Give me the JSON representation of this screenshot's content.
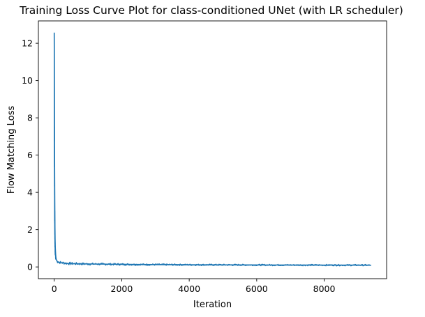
{
  "chart_data": {
    "type": "line",
    "title": "Training Loss Curve Plot for class-conditioned UNet (with LR scheduler)",
    "xlabel": "Iteration",
    "ylabel": "Flow Matching Loss",
    "xlim": [
      -470,
      9850
    ],
    "ylim": [
      -0.63,
      13.2
    ],
    "x_ticks": [
      0,
      2000,
      4000,
      6000,
      8000
    ],
    "x_tick_labels": [
      "0",
      "2000",
      "4000",
      "6000",
      "8000"
    ],
    "y_ticks": [
      0,
      2,
      4,
      6,
      8,
      10,
      12
    ],
    "y_tick_labels": [
      "0",
      "2",
      "4",
      "6",
      "8",
      "10",
      "12"
    ],
    "grid": false,
    "legend": null,
    "series": [
      {
        "color": "#1f77b4",
        "x": [
          0,
          2,
          5,
          8,
          12,
          16,
          20,
          25,
          30,
          40,
          50,
          60,
          80,
          100,
          150,
          200,
          300,
          400,
          500,
          700,
          1000,
          1500,
          2000,
          2500,
          3000,
          4000,
          5000,
          6000,
          7000,
          8000,
          9000,
          9380
        ],
        "y": [
          12.55,
          11.6,
          9.0,
          6.5,
          4.6,
          3.2,
          2.2,
          1.5,
          1.05,
          0.7,
          0.5,
          0.4,
          0.32,
          0.28,
          0.25,
          0.23,
          0.21,
          0.19,
          0.18,
          0.17,
          0.16,
          0.15,
          0.14,
          0.13,
          0.125,
          0.115,
          0.11,
          0.105,
          0.1,
          0.098,
          0.095,
          0.093
        ]
      }
    ]
  }
}
